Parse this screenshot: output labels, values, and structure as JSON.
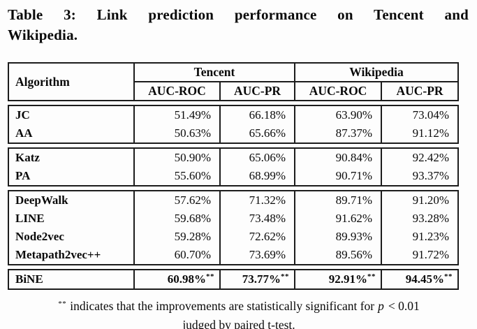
{
  "colors": {
    "background": "#fdfdfd",
    "text": "#0a0a0a",
    "border": "#1c1c1c"
  },
  "caption": {
    "line1": "Table 3: Link prediction performance on Tencent and",
    "line2": "Wikipedia."
  },
  "table": {
    "header": {
      "algorithm": "Algorithm",
      "datasets": [
        "Tencent",
        "Wikipedia"
      ],
      "metrics": [
        "AUC-ROC",
        "AUC-PR",
        "AUC-ROC",
        "AUC-PR"
      ]
    },
    "groups": [
      {
        "rows": [
          {
            "name": "JC",
            "values": [
              "51.49%",
              "66.18%",
              "63.90%",
              "73.04%"
            ]
          },
          {
            "name": "AA",
            "values": [
              "50.63%",
              "65.66%",
              "87.37%",
              "91.12%"
            ]
          }
        ]
      },
      {
        "rows": [
          {
            "name": "Katz",
            "values": [
              "50.90%",
              "65.06%",
              "90.84%",
              "92.42%"
            ]
          },
          {
            "name": "PA",
            "values": [
              "55.60%",
              "68.99%",
              "90.71%",
              "93.37%"
            ]
          }
        ]
      },
      {
        "rows": [
          {
            "name": "DeepWalk",
            "values": [
              "57.62%",
              "71.32%",
              "89.71%",
              "91.20%"
            ]
          },
          {
            "name": "LINE",
            "values": [
              "59.68%",
              "73.48%",
              "91.62%",
              "93.28%"
            ]
          },
          {
            "name": "Node2vec",
            "values": [
              "59.28%",
              "72.62%",
              "89.93%",
              "91.23%"
            ]
          },
          {
            "name": "Metapath2vec++",
            "values": [
              "60.70%",
              "73.69%",
              "89.56%",
              "91.72%"
            ]
          }
        ]
      },
      {
        "rows": [
          {
            "name": "BiNE",
            "values": [
              "60.98%",
              "73.77%",
              "92.91%",
              "94.45%"
            ],
            "significance_marker": "**"
          }
        ]
      }
    ]
  },
  "footnote": {
    "marker": "**",
    "text_before_p": "indicates that the improvements are statistically significant for",
    "p_symbol": "p",
    "text_after_p": "< 0.01",
    "line2": "judged by paired t-test."
  }
}
